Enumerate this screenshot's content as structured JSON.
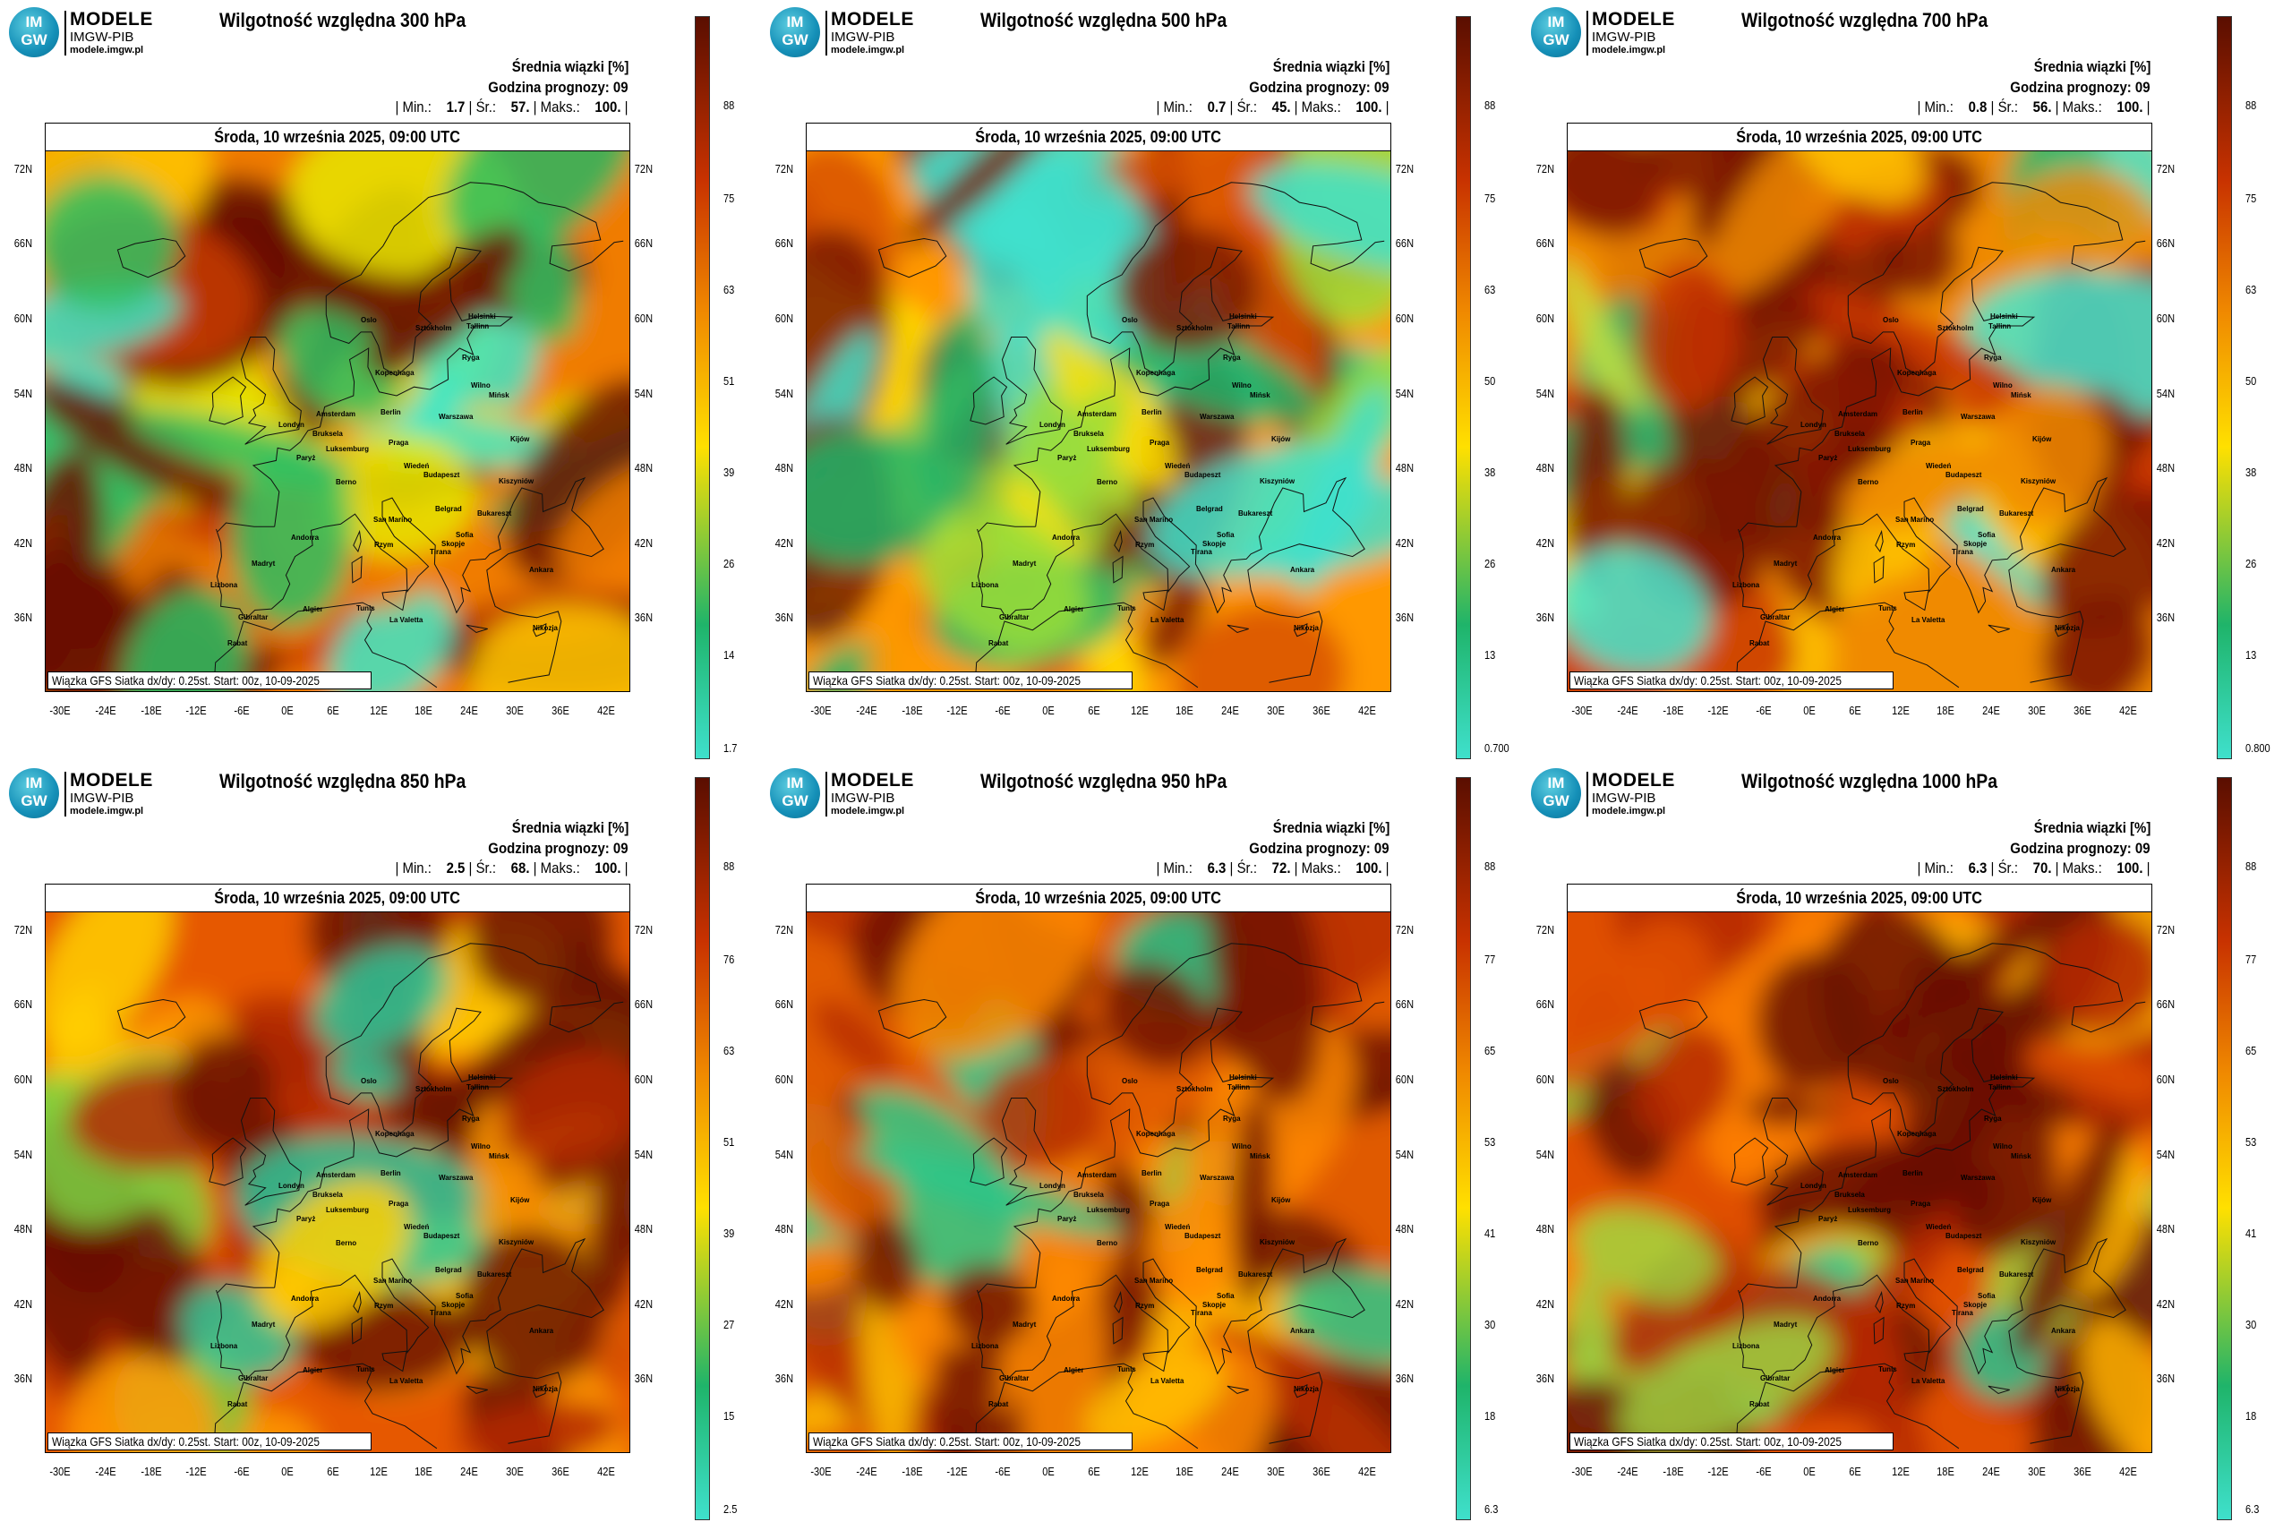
{
  "logo": {
    "line1": "MODELE",
    "line2": "IMGW-PIB",
    "line3": "modele.imgw.pl",
    "mark_top": "IM",
    "mark_bottom": "GW"
  },
  "date_line": "Środa, 10 września 2025, 09:00 UTC",
  "header_mean": "Średnia wiązki [%]",
  "header_hour": "Godzina prognozy: 09",
  "source_line": "Wiązka GFS Siatka dx/dy: 0.25st. Start: 00z, 10-09-2025",
  "lat_labels": [
    "72N",
    "66N",
    "60N",
    "54N",
    "48N",
    "42N",
    "36N"
  ],
  "lon_labels": [
    "-30E",
    "-24E",
    "-18E",
    "-12E",
    "-6E",
    "0E",
    "6E",
    "12E",
    "18E",
    "24E",
    "30E",
    "36E",
    "42E"
  ],
  "cities": [
    "Oslo",
    "Sztokholm",
    "Helsinki",
    "Tallinn",
    "Ryga",
    "Kopenhaga",
    "Wilno",
    "Mińsk",
    "Amsterdam",
    "Berlin",
    "Warszawa",
    "Londyn",
    "Bruksela",
    "Luksemburg",
    "Praga",
    "Kijów",
    "Paryż",
    "Wiedeń",
    "Kiszyniów",
    "Berno",
    "Budapeszt",
    "Belgrad",
    "Bukareszt",
    "Sofia",
    "Andorra",
    "San Marino",
    "Rzym",
    "Skopje",
    "Tirana",
    "Madryt",
    "Lizbona",
    "Ankara",
    "Gibraltar",
    "Algier",
    "Tunis",
    "La Valetta",
    "Rabat",
    "Nikozja"
  ],
  "colors": {
    "map_low": "#3fe0cc",
    "map_mid_green": "#1fb46a",
    "map_yellow": "#ffe000",
    "map_orange": "#f08a00",
    "map_red": "#c83200",
    "map_dark": "#5a0e00"
  },
  "panels": [
    {
      "title": "Wilgotność względna 300 hPa",
      "stats": {
        "min_label": "| Min.:",
        "min": "1.7",
        "avg_label": "| Śr.:",
        "avg": "57.",
        "max_label": "| Maks.:",
        "max": "100."
      },
      "colorbar_ticks": [
        "88",
        "75",
        "63",
        "51",
        "39",
        "26",
        "14",
        "1.7"
      ],
      "humidity_pct": 57
    },
    {
      "title": "Wilgotność względna 500 hPa",
      "stats": {
        "min_label": "| Min.:",
        "min": "0.7",
        "avg_label": "| Śr.:",
        "avg": "45.",
        "max_label": "| Maks.:",
        "max": "100."
      },
      "colorbar_ticks": [
        "88",
        "75",
        "63",
        "50",
        "38",
        "26",
        "13",
        "0.700"
      ],
      "humidity_pct": 45
    },
    {
      "title": "Wilgotność względna 700 hPa",
      "stats": {
        "min_label": "| Min.:",
        "min": "0.8",
        "avg_label": "| Śr.:",
        "avg": "56.",
        "max_label": "| Maks.:",
        "max": "100."
      },
      "colorbar_ticks": [
        "88",
        "75",
        "63",
        "50",
        "38",
        "26",
        "13",
        "0.800"
      ],
      "humidity_pct": 56
    },
    {
      "title": "Wilgotność względna 850 hPa",
      "stats": {
        "min_label": "| Min.:",
        "min": "2.5",
        "avg_label": "| Śr.:",
        "avg": "68.",
        "max_label": "| Maks.:",
        "max": "100."
      },
      "colorbar_ticks": [
        "88",
        "76",
        "63",
        "51",
        "39",
        "27",
        "15",
        "2.5"
      ],
      "humidity_pct": 68
    },
    {
      "title": "Wilgotność względna 950 hPa",
      "stats": {
        "min_label": "| Min.:",
        "min": "6.3",
        "avg_label": "| Śr.:",
        "avg": "72.",
        "max_label": "| Maks.:",
        "max": "100."
      },
      "colorbar_ticks": [
        "88",
        "77",
        "65",
        "53",
        "41",
        "30",
        "18",
        "6.3"
      ],
      "humidity_pct": 72
    },
    {
      "title": "Wilgotność względna 1000 hPa",
      "stats": {
        "min_label": "| Min.:",
        "min": "6.3",
        "avg_label": "| Śr.:",
        "avg": "70.",
        "max_label": "| Maks.:",
        "max": "100."
      },
      "colorbar_ticks": [
        "88",
        "77",
        "65",
        "53",
        "41",
        "30",
        "18",
        "6.3"
      ],
      "humidity_pct": 70
    }
  ]
}
